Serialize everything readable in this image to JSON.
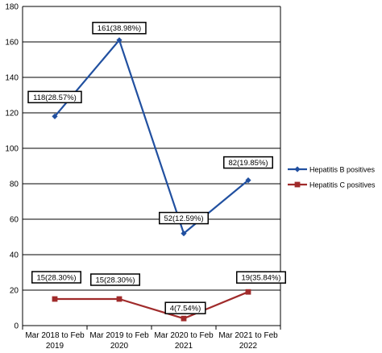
{
  "chart_data": {
    "type": "line",
    "title": "",
    "xlabel": "",
    "ylabel": "",
    "categories": [
      [
        "Mar 2018 to Feb",
        "2019"
      ],
      [
        "Mar 2019 to Feb",
        "2020"
      ],
      [
        "Mar 2020 to Feb",
        "2021"
      ],
      [
        "Mar 2021 to Feb",
        "2022"
      ]
    ],
    "ylim": [
      0,
      180
    ],
    "yticks": [
      0,
      20,
      40,
      60,
      80,
      100,
      120,
      140,
      160,
      180
    ],
    "grid": "horizontal",
    "legend_position": "right",
    "series": [
      {
        "name": "Hepatitis B positives",
        "color": "#2150a0",
        "marker": "diamond",
        "values": [
          118,
          161,
          52,
          82
        ],
        "labels": [
          "118(28.57%)",
          "161(38.98%)",
          "52(12.59%)",
          "82(19.85%)"
        ]
      },
      {
        "name": "Hepatitis C positives",
        "color": "#a02b2b",
        "marker": "square",
        "values": [
          15,
          15,
          4,
          19
        ],
        "labels": [
          "15(28.30%)",
          "15(28.30%)",
          "4(7.54%)",
          "19(35.84%)"
        ]
      }
    ]
  }
}
